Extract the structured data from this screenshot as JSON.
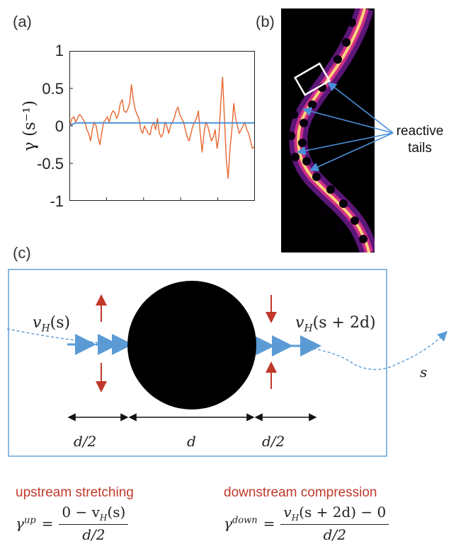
{
  "panel_labels": {
    "a": "(a)",
    "b": "(b)",
    "c": "(c)"
  },
  "chart_data": {
    "type": "line",
    "ylabel": "γ (s⁻¹)",
    "ylim": [
      -1,
      1
    ],
    "yticks": [
      "1",
      "0.5",
      "0",
      "-0.5",
      "-1"
    ],
    "x": [
      0,
      1,
      2,
      3,
      4,
      5,
      6,
      7,
      8,
      9,
      10,
      11,
      12,
      13,
      14,
      15,
      16,
      17,
      18,
      19,
      20,
      21,
      22,
      23,
      24,
      25,
      26,
      27,
      28,
      29,
      30,
      31,
      32,
      33,
      34,
      35,
      36,
      37,
      38,
      39,
      40,
      41,
      42,
      43,
      44,
      45,
      46,
      47,
      48,
      49,
      50,
      51,
      52,
      53,
      54,
      55,
      56,
      57,
      58,
      59,
      60,
      61,
      62,
      63,
      64,
      65,
      66,
      67,
      68,
      69,
      70,
      71,
      72,
      73,
      74,
      75,
      76,
      77,
      78,
      79,
      80,
      81,
      82,
      83,
      84,
      85,
      86,
      87,
      88,
      89,
      90,
      91,
      92,
      93,
      94,
      95,
      96,
      97,
      98,
      99
    ],
    "series": [
      {
        "color": "#e8662f",
        "values": [
          0.0,
          0.1,
          0.12,
          0.05,
          0.1,
          0.15,
          0.13,
          0.08,
          0.05,
          -0.05,
          -0.1,
          -0.2,
          -0.05,
          0.05,
          0.0,
          -0.15,
          -0.25,
          -0.1,
          0.05,
          0.08,
          0.12,
          0.05,
          0.15,
          0.2,
          0.18,
          0.1,
          0.15,
          0.3,
          0.35,
          0.2,
          0.18,
          0.22,
          0.3,
          0.55,
          0.35,
          0.22,
          0.15,
          0.1,
          -0.05,
          -0.1,
          0.0,
          -0.05,
          -0.1,
          -0.12,
          0.0,
          0.05,
          -0.05,
          0.1,
          -0.1,
          -0.15,
          -0.1,
          0.05,
          0.0,
          -0.1,
          0.0,
          0.05,
          0.1,
          0.2,
          0.25,
          0.15,
          0.1,
          0.05,
          -0.05,
          -0.15,
          -0.2,
          -0.1,
          0.0,
          0.05,
          0.1,
          0.2,
          -0.1,
          -0.35,
          -0.1,
          0.05,
          0.0,
          -0.1,
          -0.2,
          -0.15,
          -0.05,
          -0.3,
          -0.15,
          0.3,
          0.65,
          0.1,
          -0.45,
          -0.7,
          -0.3,
          -0.05,
          0.3,
          0.1,
          0.0,
          -0.1,
          -0.05,
          0.0,
          0.05,
          -0.05,
          -0.1,
          -0.2,
          -0.3,
          -0.28
        ]
      },
      {
        "color": "#4a90d9",
        "values": [
          0.01,
          0.02,
          0.03,
          0.04,
          0.04,
          0.04,
          0.04,
          0.04,
          0.04,
          0.04,
          0.04,
          0.04,
          0.04,
          0.04,
          0.04,
          0.04,
          0.04,
          0.04,
          0.04,
          0.04,
          0.04,
          0.04,
          0.04,
          0.04,
          0.04,
          0.04,
          0.04,
          0.04,
          0.04,
          0.04,
          0.04,
          0.04,
          0.04,
          0.04,
          0.04,
          0.04,
          0.04,
          0.04,
          0.04,
          0.04,
          0.04,
          0.04,
          0.04,
          0.04,
          0.04,
          0.04,
          0.04,
          0.04,
          0.04,
          0.04,
          0.04,
          0.04,
          0.04,
          0.04,
          0.04,
          0.04,
          0.04,
          0.04,
          0.04,
          0.04,
          0.04,
          0.04,
          0.04,
          0.04,
          0.04,
          0.04,
          0.04,
          0.04,
          0.04,
          0.04,
          0.04,
          0.04,
          0.04,
          0.04,
          0.04,
          0.04,
          0.04,
          0.04,
          0.04,
          0.04,
          0.04,
          0.04,
          0.04,
          0.04,
          0.04,
          0.04,
          0.04,
          0.04,
          0.04,
          0.04,
          0.04,
          0.04,
          0.04,
          0.04,
          0.04,
          0.04,
          0.04,
          0.04,
          0.04,
          0.04
        ]
      }
    ]
  },
  "panel_b": {
    "annotation_line1": "reactive",
    "annotation_line2": "tails"
  },
  "panel_c": {
    "vh_s": "v",
    "vh_s_sub": "H",
    "vh_s_arg": "(s)",
    "vh_s2d": "v",
    "vh_s2d_sub": "H",
    "vh_s2d_arg": "(s + 2d)",
    "s_label": "s",
    "dim_left": "d/2",
    "dim_mid": "d",
    "dim_right": "d/2"
  },
  "equations": {
    "up_title": "upstream stretching",
    "down_title": "downstream compression",
    "up_lhs": "γ",
    "up_sup": "up",
    "up_num": "0 − v",
    "up_num_sub": "H",
    "up_num_tail": "(s)",
    "up_den": "d/2",
    "down_lhs": "γ",
    "down_sup": "down",
    "down_num": "v",
    "down_num_sub": "H",
    "down_num_tail": "(s + 2d) − 0",
    "down_den": "d/2"
  }
}
